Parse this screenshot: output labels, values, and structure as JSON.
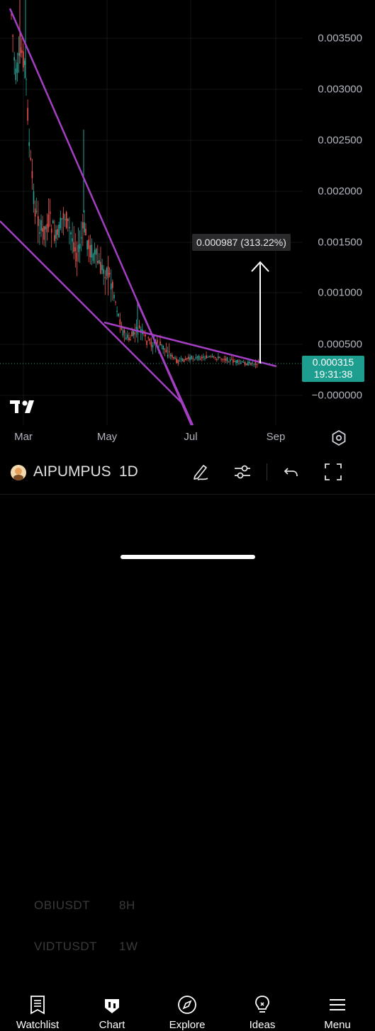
{
  "chart": {
    "price_axis": [
      "0.003500",
      "0.003000",
      "0.002500",
      "0.002000",
      "0.001500",
      "0.001000",
      "0.000500",
      "−0.000000"
    ],
    "time_axis": [
      "Mar",
      "May",
      "Jul",
      "Sep"
    ],
    "current_price": "0.000315",
    "countdown": "19:31:38",
    "measure_label": "0.000987 (313.22%)",
    "colors": {
      "up": "#26a69a",
      "down": "#ef5350",
      "trendline": "#a43fc4",
      "price_tag": "#1e9e8e"
    }
  },
  "toolbar": {
    "symbol": "AIPUMPUS",
    "interval": "1D",
    "ghost_rows": [
      {
        "symbol": "OBIUSDT",
        "interval": "8H"
      },
      {
        "symbol": "VIDTUSDT",
        "interval": "1W"
      }
    ],
    "icons": [
      "drawing-pen-icon",
      "indicators-sliders-icon",
      "undo-icon",
      "fullscreen-icon"
    ]
  },
  "tabs": [
    {
      "label": "Watchlist",
      "icon": "watchlist-icon"
    },
    {
      "label": "Chart",
      "icon": "chart-icon"
    },
    {
      "label": "Explore",
      "icon": "compass-icon"
    },
    {
      "label": "Ideas",
      "icon": "lightbulb-icon"
    },
    {
      "label": "Menu",
      "icon": "menu-icon"
    }
  ]
}
